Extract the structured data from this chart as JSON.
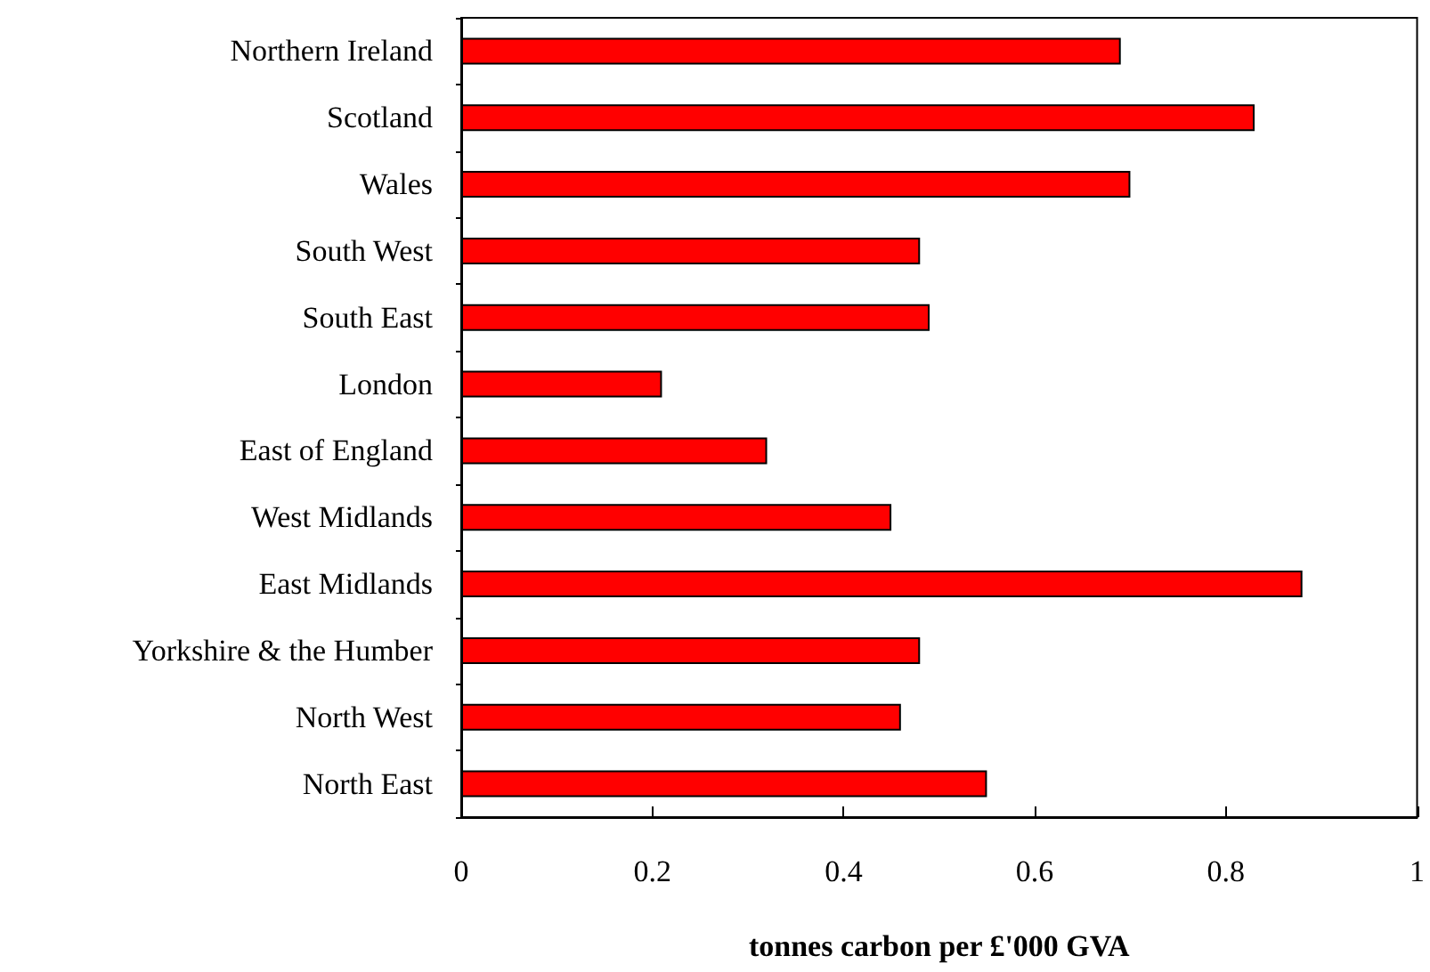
{
  "chart_data": {
    "type": "bar",
    "orientation": "horizontal",
    "xlabel": "tonnes carbon per £'000 GVA",
    "categories": [
      "Northern Ireland",
      "Scotland",
      "Wales",
      "South West",
      "South East",
      "London",
      "East of England",
      "West Midlands",
      "East Midlands",
      "Yorkshire & the Humber",
      "North West",
      "North East"
    ],
    "values": [
      0.69,
      0.83,
      0.7,
      0.48,
      0.49,
      0.21,
      0.32,
      0.45,
      0.88,
      0.48,
      0.46,
      0.55
    ],
    "color": "#ff0000",
    "xlim": [
      0,
      1
    ],
    "xticks": [
      0,
      0.2,
      0.4,
      0.6,
      0.8,
      1
    ],
    "grid": false
  }
}
